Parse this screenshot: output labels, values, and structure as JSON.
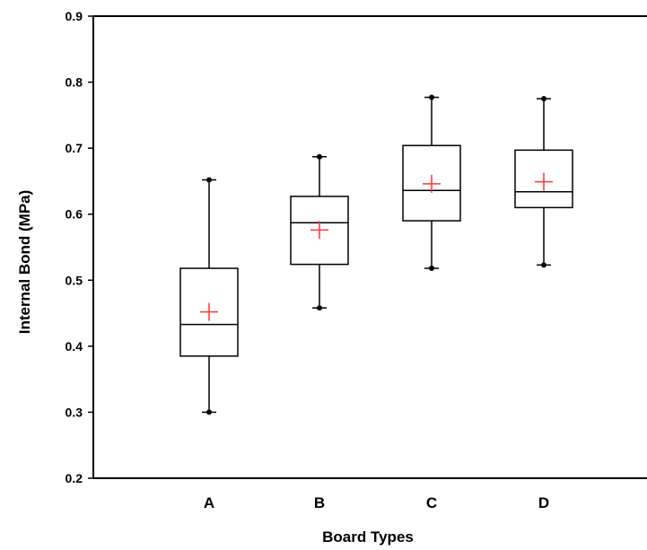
{
  "chart_data": {
    "type": "box",
    "xlabel": "Board Types",
    "ylabel": "Internal Bond (MPa)",
    "ylim": [
      0.2,
      0.9
    ],
    "yticks": [
      "0.2",
      "0.3",
      "0.4",
      "0.5",
      "0.6",
      "0.7",
      "0.8",
      "0.9"
    ],
    "categories": [
      "A",
      "B",
      "C",
      "D"
    ],
    "boxes": [
      {
        "category": "A",
        "min": 0.3,
        "q1": 0.385,
        "median": 0.433,
        "q3": 0.518,
        "max": 0.652,
        "mean": 0.452
      },
      {
        "category": "B",
        "min": 0.458,
        "q1": 0.524,
        "median": 0.587,
        "q3": 0.627,
        "max": 0.687,
        "mean": 0.576
      },
      {
        "category": "C",
        "min": 0.518,
        "q1": 0.59,
        "median": 0.636,
        "q3": 0.704,
        "max": 0.777,
        "mean": 0.646
      },
      {
        "category": "D",
        "min": 0.523,
        "q1": 0.61,
        "median": 0.634,
        "q3": 0.697,
        "max": 0.775,
        "mean": 0.649
      }
    ],
    "mean_marker": "plus",
    "colors": {
      "box": "#000000",
      "mean": "#ff3333"
    },
    "grid": false,
    "legend": "none"
  }
}
